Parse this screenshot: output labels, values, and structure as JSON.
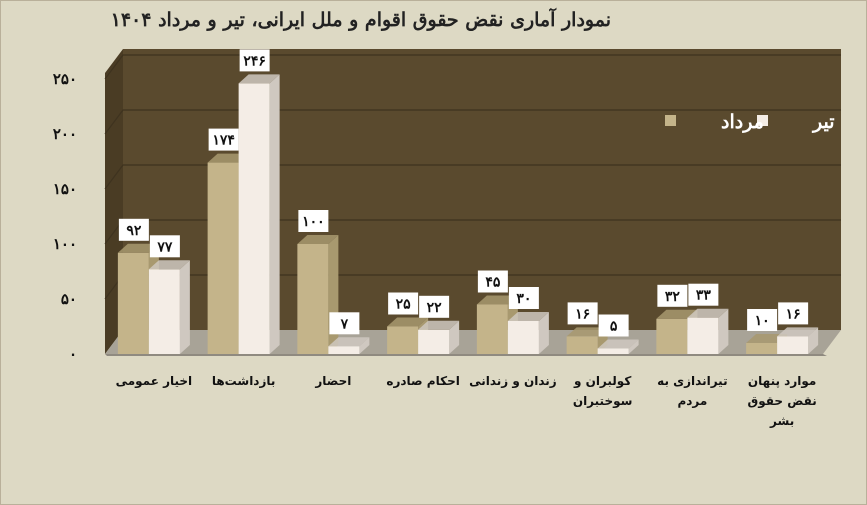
{
  "chart_data": {
    "type": "bar",
    "title": "نمودار آماری نقض حقوق اقوام و ملل ایرانی، تیر و مرداد ۱۴۰۴",
    "categories": [
      [
        "اخیار عمومی"
      ],
      [
        "بازداشت‌ها"
      ],
      [
        "احضار"
      ],
      [
        "احکام صادره"
      ],
      [
        "زندان و زندانی"
      ],
      [
        "کولبران و",
        "سوختبران"
      ],
      [
        "تیراندازی به",
        "مردم"
      ],
      [
        "موارد پنهان",
        "نقض حقوق",
        "بشر"
      ]
    ],
    "series": [
      {
        "name": "مرداد",
        "color": "#c4b48a",
        "values": [
          92,
          174,
          100,
          25,
          45,
          16,
          32,
          10
        ],
        "labels": [
          "۹۲",
          "۱۷۴",
          "۱۰۰",
          "۲۵",
          "۴۵",
          "۱۶",
          "۳۲",
          "۱۰"
        ]
      },
      {
        "name": "تیر",
        "color": "#f4ede6",
        "values": [
          77,
          246,
          7,
          22,
          30,
          5,
          33,
          16
        ],
        "labels": [
          "۷۷",
          "۲۴۶",
          "۷",
          "۲۲",
          "۳۰",
          "۵",
          "۳۳",
          "۱۶"
        ]
      }
    ],
    "yticks": [
      0,
      50,
      100,
      150,
      200,
      250
    ],
    "ytick_labels": [
      "۰",
      "۵۰",
      "۱۰۰",
      "۱۵۰",
      "۲۰۰",
      "۲۵۰"
    ],
    "ylim": [
      0,
      250
    ],
    "legend_position": "top-right",
    "plot_background": "#5a4a2e",
    "grid": true
  }
}
